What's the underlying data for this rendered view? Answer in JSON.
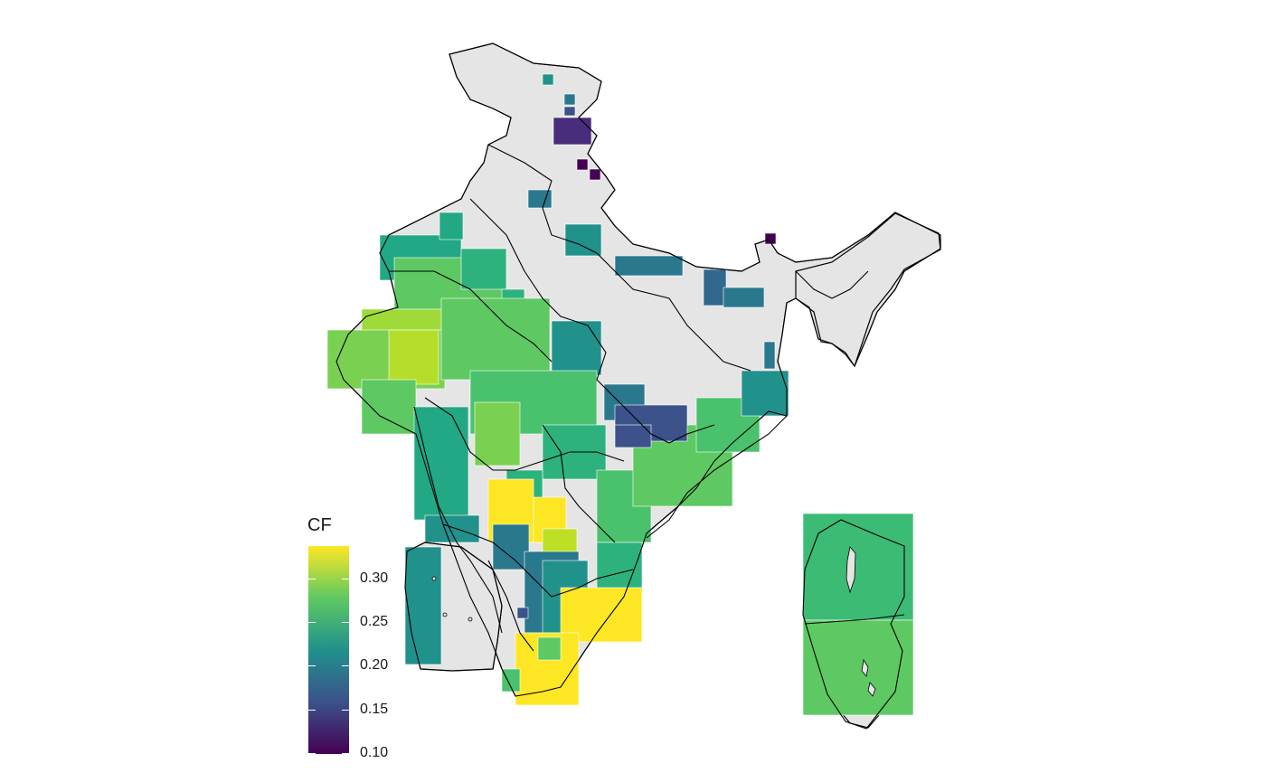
{
  "legend": {
    "title": "CF",
    "ticks": [
      {
        "label": "0.30",
        "value": 0.3
      },
      {
        "label": "0.25",
        "value": 0.25
      },
      {
        "label": "0.20",
        "value": 0.2
      },
      {
        "label": "0.15",
        "value": 0.15
      },
      {
        "label": "0.10",
        "value": 0.1
      }
    ],
    "min": 0.1,
    "max": 0.34
  },
  "colors": {
    "land": "#e5e5e5",
    "border": "#000000",
    "cell_border": "#ffffff",
    "scale": [
      "#440154",
      "#3b528b",
      "#21918c",
      "#5ec962",
      "#fde725"
    ]
  }
}
